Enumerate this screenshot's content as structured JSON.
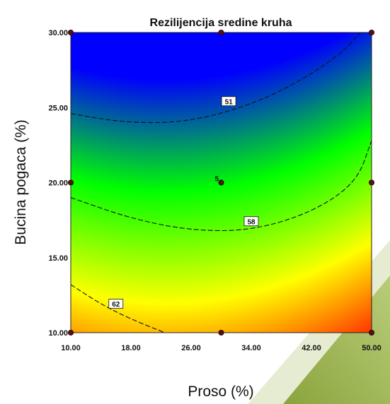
{
  "chart_data": {
    "type": "heatmap",
    "subtype": "contour",
    "title": "Rezilijencija sredine kruha",
    "xlabel": "Proso (%)",
    "ylabel": "Bucina pogaca (%)",
    "xlim": [
      10,
      50
    ],
    "ylim": [
      10,
      30
    ],
    "x_ticks": [
      "10.00",
      "18.00",
      "26.00",
      "34.00",
      "42.00",
      "50.00"
    ],
    "y_ticks": [
      "10.00",
      "15.00",
      "20.00",
      "25.00",
      "30.00"
    ],
    "color_scale": [
      "#0000ff",
      "#00ff00",
      "#ffff00",
      "#ff0000"
    ],
    "grid": false,
    "contours": [
      {
        "label": "51",
        "points": [
          [
            10,
            24.6
          ],
          [
            17,
            24.0
          ],
          [
            25,
            24.0
          ],
          [
            33,
            25.0
          ],
          [
            40,
            26.6
          ],
          [
            46,
            28.6
          ],
          [
            48.5,
            30.0
          ]
        ]
      },
      {
        "label": "58",
        "points": [
          [
            10,
            19.0
          ],
          [
            18,
            17.6
          ],
          [
            26,
            16.8
          ],
          [
            34,
            16.8
          ],
          [
            42,
            18.0
          ],
          [
            48,
            20.0
          ],
          [
            50,
            22.8
          ]
        ]
      },
      {
        "label": "62",
        "points": [
          [
            10,
            13.2
          ],
          [
            14,
            11.9
          ],
          [
            18,
            10.9
          ],
          [
            22.5,
            10.0
          ]
        ]
      }
    ],
    "contour_label_positions": [
      [
        31,
        25.4
      ],
      [
        34,
        17.4
      ],
      [
        16,
        11.9
      ]
    ],
    "design_points": [
      [
        10,
        10
      ],
      [
        10,
        20
      ],
      [
        10,
        30
      ],
      [
        30,
        10
      ],
      [
        30,
        20
      ],
      [
        30,
        30
      ],
      [
        50,
        10
      ],
      [
        50,
        20
      ],
      [
        50,
        30
      ]
    ],
    "center_point_label": "5"
  }
}
